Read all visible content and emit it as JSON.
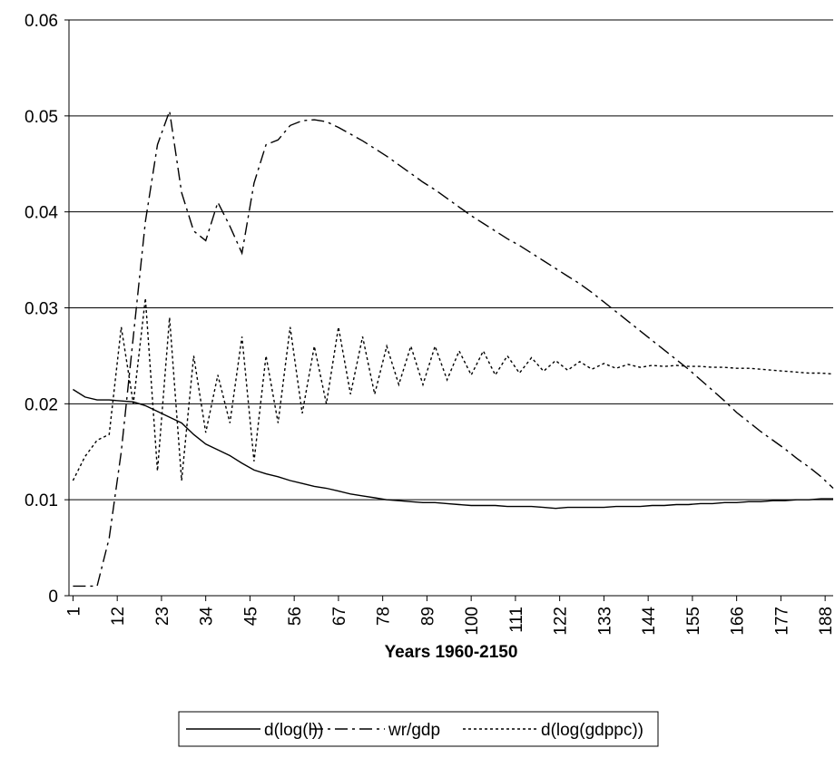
{
  "chart_data": {
    "type": "line",
    "x_label": "Years 1960-2150",
    "x": [
      1,
      4,
      7,
      10,
      13,
      16,
      19,
      22,
      25,
      28,
      31,
      34,
      37,
      40,
      43,
      46,
      49,
      52,
      55,
      58,
      61,
      64,
      67,
      70,
      73,
      76,
      79,
      82,
      85,
      88,
      91,
      94,
      97,
      100,
      103,
      106,
      109,
      112,
      115,
      118,
      121,
      124,
      127,
      130,
      133,
      136,
      139,
      142,
      145,
      148,
      151,
      154,
      157,
      160,
      163,
      166,
      169,
      172,
      175,
      178,
      181,
      184,
      187,
      190
    ],
    "series": [
      {
        "name": "d(log(l))",
        "color": "#000000",
        "values": [
          0.0215,
          0.0207,
          0.0204,
          0.0204,
          0.0203,
          0.0202,
          0.0198,
          0.0192,
          0.0186,
          0.018,
          0.0168,
          0.0158,
          0.0152,
          0.0146,
          0.0138,
          0.0131,
          0.0127,
          0.0124,
          0.012,
          0.0117,
          0.0114,
          0.0112,
          0.0109,
          0.0106,
          0.0104,
          0.0102,
          0.01,
          0.0099,
          0.0098,
          0.0097,
          0.0097,
          0.0096,
          0.0095,
          0.0094,
          0.0094,
          0.0094,
          0.0093,
          0.0093,
          0.0093,
          0.0092,
          0.0091,
          0.0092,
          0.0092,
          0.0092,
          0.0092,
          0.0093,
          0.0093,
          0.0093,
          0.0094,
          0.0094,
          0.0095,
          0.0095,
          0.0096,
          0.0096,
          0.0097,
          0.0097,
          0.0098,
          0.0098,
          0.0099,
          0.0099,
          0.01,
          0.01,
          0.0101,
          0.0101
        ]
      },
      {
        "name": "wr/gdp",
        "color": "#000000",
        "values": [
          0.001,
          0.001,
          0.001,
          0.006,
          0.015,
          0.027,
          0.039,
          0.047,
          0.0505,
          0.042,
          0.038,
          0.037,
          0.041,
          0.0385,
          0.0357,
          0.043,
          0.047,
          0.0475,
          0.049,
          0.0495,
          0.0496,
          0.0494,
          0.0488,
          0.0481,
          0.0474,
          0.0466,
          0.0458,
          0.0449,
          0.044,
          0.0431,
          0.0423,
          0.0414,
          0.0405,
          0.0396,
          0.0388,
          0.038,
          0.0372,
          0.0365,
          0.0357,
          0.0349,
          0.0341,
          0.0333,
          0.0325,
          0.0316,
          0.0306,
          0.0296,
          0.0286,
          0.0276,
          0.0266,
          0.0256,
          0.0246,
          0.0236,
          0.0225,
          0.0214,
          0.0203,
          0.0191,
          0.0181,
          0.0171,
          0.0162,
          0.0153,
          0.0143,
          0.0134,
          0.0124,
          0.0112
        ]
      },
      {
        "name": "d(log(gdppc))",
        "color": "#000000",
        "values": [
          0.012,
          0.0145,
          0.0162,
          0.0168,
          0.028,
          0.02,
          0.031,
          0.013,
          0.029,
          0.012,
          0.025,
          0.017,
          0.023,
          0.018,
          0.027,
          0.014,
          0.025,
          0.018,
          0.028,
          0.019,
          0.026,
          0.02,
          0.028,
          0.021,
          0.027,
          0.021,
          0.026,
          0.022,
          0.026,
          0.022,
          0.026,
          0.0225,
          0.0255,
          0.023,
          0.0255,
          0.023,
          0.025,
          0.0232,
          0.0248,
          0.0234,
          0.0245,
          0.0235,
          0.0244,
          0.0236,
          0.0242,
          0.0237,
          0.0241,
          0.0238,
          0.024,
          0.0239,
          0.024,
          0.0239,
          0.0239,
          0.0238,
          0.0238,
          0.0237,
          0.0237,
          0.0236,
          0.0235,
          0.0234,
          0.0233,
          0.0232,
          0.0232,
          0.0231
        ]
      }
    ],
    "xlim": [
      0,
      190
    ],
    "xticks": [
      1,
      12,
      23,
      34,
      45,
      56,
      67,
      78,
      89,
      100,
      111,
      122,
      133,
      144,
      155,
      166,
      177,
      188
    ],
    "ylim": [
      0,
      0.06
    ],
    "yticks": [
      0,
      0.01,
      0.02,
      0.03,
      0.04,
      0.05,
      0.06
    ],
    "grid": true,
    "legend": "bottom"
  }
}
